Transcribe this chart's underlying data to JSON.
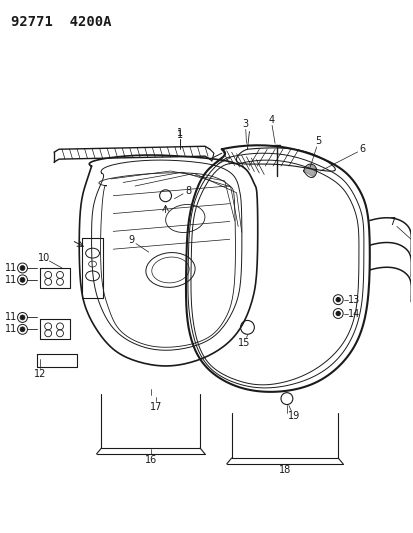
{
  "title": "92771  4200A",
  "bg_color": "#ffffff",
  "line_color": "#1a1a1a",
  "title_fontsize": 10,
  "label_fontsize": 7,
  "figsize": [
    4.14,
    5.33
  ],
  "dpi": 100
}
